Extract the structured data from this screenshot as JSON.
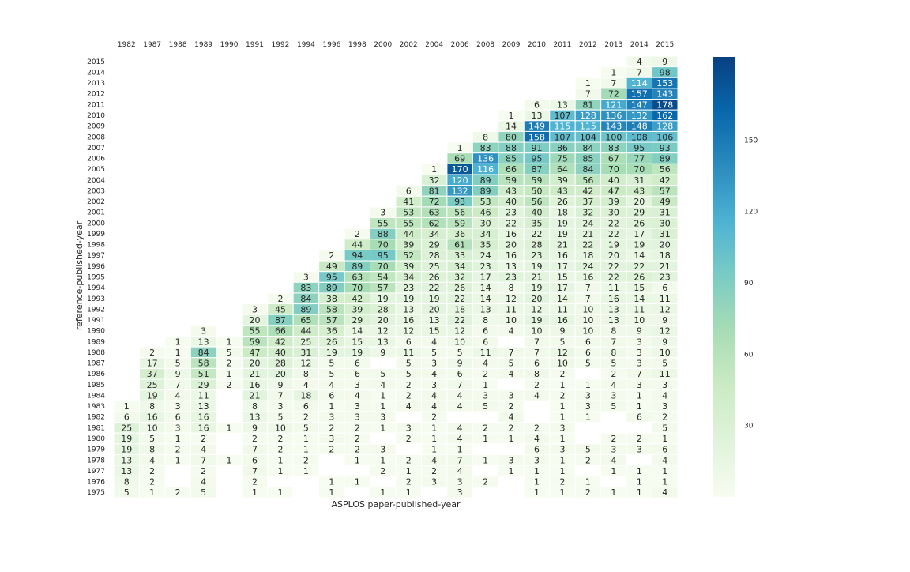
{
  "chart_data": {
    "type": "heatmap",
    "title": "",
    "xlabel": "ASPLOS paper-published-year",
    "ylabel": "reference-published-year",
    "x_categories": [
      "1982",
      "1987",
      "1988",
      "1989",
      "1990",
      "1991",
      "1992",
      "1994",
      "1996",
      "1998",
      "2000",
      "2002",
      "2004",
      "2006",
      "2008",
      "2009",
      "2010",
      "2011",
      "2012",
      "2013",
      "2014",
      "2015"
    ],
    "y_categories": [
      "2015",
      "2014",
      "2013",
      "2012",
      "2011",
      "2010",
      "2009",
      "2008",
      "2007",
      "2006",
      "2005",
      "2004",
      "2003",
      "2002",
      "2001",
      "2000",
      "1999",
      "1998",
      "1997",
      "1996",
      "1995",
      "1994",
      "1993",
      "1992",
      "1991",
      "1990",
      "1989",
      "1988",
      "1987",
      "1986",
      "1985",
      "1984",
      "1983",
      "1982",
      "1981",
      "1980",
      "1979",
      "1978",
      "1977",
      "1976",
      "1975"
    ],
    "values": [
      [
        null,
        null,
        null,
        null,
        null,
        null,
        null,
        null,
        null,
        null,
        null,
        null,
        null,
        null,
        null,
        null,
        null,
        null,
        null,
        null,
        4,
        9
      ],
      [
        null,
        null,
        null,
        null,
        null,
        null,
        null,
        null,
        null,
        null,
        null,
        null,
        null,
        null,
        null,
        null,
        null,
        null,
        null,
        1,
        7,
        98
      ],
      [
        null,
        null,
        null,
        null,
        null,
        null,
        null,
        null,
        null,
        null,
        null,
        null,
        null,
        null,
        null,
        null,
        null,
        null,
        1,
        7,
        114,
        153
      ],
      [
        null,
        null,
        null,
        null,
        null,
        null,
        null,
        null,
        null,
        null,
        null,
        null,
        null,
        null,
        null,
        null,
        null,
        null,
        7,
        72,
        157,
        143
      ],
      [
        null,
        null,
        null,
        null,
        null,
        null,
        null,
        null,
        null,
        null,
        null,
        null,
        null,
        null,
        null,
        null,
        6,
        13,
        81,
        121,
        147,
        178
      ],
      [
        null,
        null,
        null,
        null,
        null,
        null,
        null,
        null,
        null,
        null,
        null,
        null,
        null,
        null,
        null,
        1,
        13,
        107,
        128,
        136,
        132,
        162
      ],
      [
        null,
        null,
        null,
        null,
        null,
        null,
        null,
        null,
        null,
        null,
        null,
        null,
        null,
        null,
        null,
        14,
        149,
        115,
        115,
        143,
        148,
        128
      ],
      [
        null,
        null,
        null,
        null,
        null,
        null,
        null,
        null,
        null,
        null,
        null,
        null,
        null,
        null,
        8,
        80,
        158,
        107,
        104,
        100,
        108,
        106
      ],
      [
        null,
        null,
        null,
        null,
        null,
        null,
        null,
        null,
        null,
        null,
        null,
        null,
        null,
        1,
        83,
        88,
        91,
        86,
        84,
        83,
        95,
        93
      ],
      [
        null,
        null,
        null,
        null,
        null,
        null,
        null,
        null,
        null,
        null,
        null,
        null,
        null,
        69,
        136,
        85,
        95,
        75,
        85,
        67,
        77,
        89
      ],
      [
        null,
        null,
        null,
        null,
        null,
        null,
        null,
        null,
        null,
        null,
        null,
        null,
        1,
        170,
        116,
        66,
        87,
        64,
        84,
        70,
        70,
        56
      ],
      [
        null,
        null,
        null,
        null,
        null,
        null,
        null,
        null,
        null,
        null,
        null,
        null,
        32,
        120,
        89,
        59,
        59,
        39,
        56,
        40,
        31,
        42
      ],
      [
        null,
        null,
        null,
        null,
        null,
        null,
        null,
        null,
        null,
        null,
        null,
        6,
        81,
        132,
        89,
        43,
        50,
        43,
        42,
        47,
        43,
        57
      ],
      [
        null,
        null,
        null,
        null,
        null,
        null,
        null,
        null,
        null,
        null,
        null,
        41,
        72,
        93,
        53,
        40,
        56,
        26,
        37,
        39,
        20,
        49
      ],
      [
        null,
        null,
        null,
        null,
        null,
        null,
        null,
        null,
        null,
        null,
        3,
        53,
        63,
        56,
        46,
        23,
        40,
        18,
        32,
        30,
        29,
        31
      ],
      [
        null,
        null,
        null,
        null,
        null,
        null,
        null,
        null,
        null,
        null,
        55,
        55,
        62,
        59,
        30,
        22,
        35,
        19,
        24,
        22,
        26,
        30
      ],
      [
        null,
        null,
        null,
        null,
        null,
        null,
        null,
        null,
        null,
        2,
        88,
        44,
        34,
        36,
        34,
        16,
        22,
        19,
        21,
        22,
        17,
        31
      ],
      [
        null,
        null,
        null,
        null,
        null,
        null,
        null,
        null,
        null,
        44,
        70,
        39,
        29,
        61,
        35,
        20,
        28,
        21,
        22,
        19,
        19,
        20
      ],
      [
        null,
        null,
        null,
        null,
        null,
        null,
        null,
        null,
        2,
        94,
        95,
        52,
        28,
        33,
        24,
        16,
        23,
        16,
        18,
        20,
        14,
        18
      ],
      [
        null,
        null,
        null,
        null,
        null,
        null,
        null,
        null,
        49,
        89,
        70,
        39,
        25,
        34,
        23,
        13,
        19,
        17,
        24,
        22,
        22,
        21
      ],
      [
        null,
        null,
        null,
        null,
        null,
        null,
        null,
        3,
        95,
        63,
        54,
        34,
        26,
        32,
        17,
        23,
        21,
        15,
        16,
        22,
        26,
        23
      ],
      [
        null,
        null,
        null,
        null,
        null,
        null,
        null,
        83,
        89,
        70,
        57,
        23,
        22,
        26,
        14,
        8,
        19,
        17,
        7,
        11,
        15,
        6
      ],
      [
        null,
        null,
        null,
        null,
        null,
        null,
        2,
        84,
        38,
        42,
        19,
        19,
        19,
        22,
        14,
        12,
        20,
        14,
        7,
        16,
        14,
        11
      ],
      [
        null,
        null,
        null,
        null,
        null,
        3,
        45,
        89,
        58,
        39,
        28,
        13,
        20,
        18,
        13,
        11,
        12,
        11,
        10,
        13,
        11,
        12
      ],
      [
        null,
        null,
        null,
        null,
        null,
        20,
        87,
        65,
        57,
        29,
        20,
        16,
        13,
        22,
        8,
        10,
        19,
        16,
        10,
        13,
        10,
        9
      ],
      [
        null,
        null,
        null,
        3,
        null,
        55,
        66,
        44,
        36,
        14,
        12,
        12,
        15,
        12,
        6,
        4,
        10,
        9,
        10,
        8,
        9,
        12
      ],
      [
        null,
        null,
        1,
        13,
        1,
        59,
        42,
        25,
        26,
        15,
        13,
        6,
        4,
        10,
        6,
        null,
        7,
        5,
        6,
        7,
        3,
        9
      ],
      [
        null,
        2,
        1,
        84,
        5,
        47,
        40,
        31,
        19,
        19,
        9,
        11,
        5,
        5,
        11,
        7,
        7,
        12,
        6,
        8,
        3,
        10
      ],
      [
        null,
        17,
        5,
        58,
        2,
        20,
        28,
        12,
        5,
        6,
        null,
        5,
        3,
        9,
        4,
        5,
        6,
        10,
        5,
        5,
        3,
        5
      ],
      [
        null,
        37,
        9,
        51,
        1,
        21,
        20,
        8,
        5,
        6,
        5,
        5,
        4,
        6,
        2,
        4,
        8,
        2,
        null,
        2,
        7,
        11
      ],
      [
        null,
        25,
        7,
        29,
        2,
        16,
        9,
        4,
        4,
        3,
        4,
        2,
        3,
        7,
        1,
        null,
        2,
        1,
        1,
        4,
        3,
        3
      ],
      [
        null,
        19,
        4,
        11,
        null,
        21,
        7,
        18,
        6,
        4,
        1,
        2,
        4,
        4,
        3,
        3,
        4,
        2,
        3,
        3,
        1,
        4
      ],
      [
        1,
        8,
        3,
        13,
        null,
        8,
        3,
        6,
        1,
        3,
        1,
        4,
        4,
        4,
        5,
        2,
        null,
        1,
        3,
        5,
        1,
        3
      ],
      [
        6,
        16,
        6,
        16,
        null,
        13,
        5,
        2,
        3,
        3,
        3,
        null,
        2,
        null,
        null,
        4,
        null,
        1,
        1,
        null,
        6,
        2
      ],
      [
        25,
        10,
        3,
        16,
        1,
        9,
        10,
        5,
        2,
        2,
        1,
        3,
        1,
        4,
        2,
        2,
        2,
        3,
        null,
        null,
        null,
        5
      ],
      [
        19,
        5,
        1,
        2,
        null,
        2,
        2,
        1,
        3,
        2,
        null,
        2,
        1,
        4,
        1,
        1,
        4,
        1,
        null,
        2,
        2,
        1
      ],
      [
        19,
        8,
        2,
        4,
        null,
        7,
        2,
        1,
        2,
        2,
        3,
        null,
        1,
        1,
        null,
        null,
        6,
        3,
        5,
        3,
        3,
        6
      ],
      [
        13,
        4,
        1,
        7,
        1,
        6,
        1,
        2,
        null,
        1,
        1,
        2,
        4,
        7,
        1,
        3,
        3,
        1,
        2,
        4,
        null,
        4
      ],
      [
        13,
        2,
        null,
        2,
        null,
        7,
        1,
        1,
        null,
        null,
        2,
        1,
        2,
        4,
        null,
        1,
        1,
        1,
        null,
        1,
        1,
        1
      ],
      [
        8,
        2,
        null,
        4,
        null,
        2,
        null,
        null,
        1,
        1,
        null,
        2,
        3,
        3,
        2,
        null,
        1,
        2,
        1,
        null,
        1,
        1
      ],
      [
        5,
        1,
        2,
        5,
        null,
        1,
        1,
        null,
        1,
        null,
        1,
        1,
        null,
        3,
        null,
        null,
        1,
        1,
        2,
        1,
        1,
        4
      ]
    ],
    "vmax": 185,
    "colorbar": {
      "ticks": [
        30,
        60,
        90,
        120,
        150
      ],
      "colormap": [
        "#f7fcf0",
        "#e0f3db",
        "#ccebc5",
        "#a8ddb5",
        "#7bccc4",
        "#4eb3d3",
        "#2b8cbe",
        "#0868ac",
        "#084081"
      ]
    },
    "cell_text_dark": "#262626",
    "cell_text_light": "#ffffff",
    "cell_border": "#ffffff"
  }
}
